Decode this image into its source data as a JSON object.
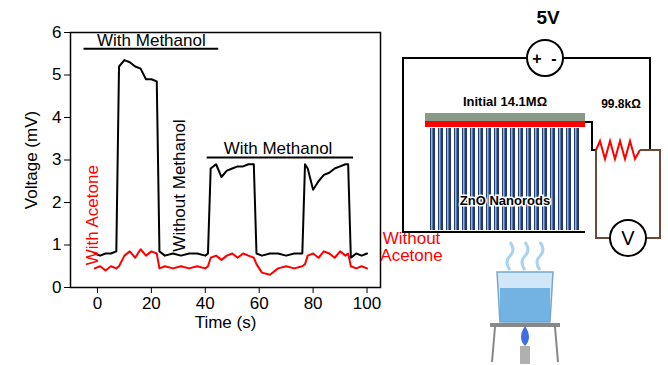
{
  "chart_data": {
    "type": "line",
    "x_label": "Time (s)",
    "y_label": "Voltage (mV)",
    "x": [
      -1,
      1,
      3,
      5,
      7,
      8,
      10,
      12,
      14,
      16,
      18,
      20,
      22,
      23,
      25,
      28,
      31,
      34,
      37,
      40,
      41,
      42,
      44,
      46,
      48,
      50,
      52,
      54,
      56,
      58,
      59,
      61,
      64,
      67,
      70,
      73,
      76,
      77,
      78,
      80,
      82,
      84,
      86,
      88,
      90,
      92,
      93,
      94,
      96,
      98,
      100
    ],
    "series": [
      {
        "name": "With Methanol",
        "color": "#000000",
        "values": [
          0.8,
          0.75,
          0.8,
          0.8,
          0.85,
          5.2,
          5.35,
          5.3,
          5.2,
          5.15,
          4.9,
          4.9,
          4.85,
          0.85,
          0.75,
          0.8,
          0.75,
          0.8,
          0.8,
          0.75,
          0.8,
          2.8,
          2.9,
          2.6,
          2.75,
          2.8,
          2.85,
          2.85,
          2.9,
          2.9,
          0.8,
          0.75,
          0.8,
          0.8,
          0.75,
          0.8,
          0.8,
          2.9,
          2.8,
          2.3,
          2.5,
          2.65,
          2.7,
          2.8,
          2.85,
          2.9,
          2.9,
          0.7,
          0.8,
          0.75,
          0.8
        ]
      },
      {
        "name": "With Acetone",
        "color": "#ff0000",
        "values": [
          0.45,
          0.5,
          0.4,
          0.5,
          0.45,
          0.5,
          0.75,
          0.85,
          0.7,
          0.9,
          0.75,
          0.85,
          0.8,
          0.45,
          0.5,
          0.45,
          0.5,
          0.45,
          0.5,
          0.45,
          0.5,
          0.7,
          0.75,
          0.65,
          0.75,
          0.8,
          0.7,
          0.8,
          0.75,
          0.7,
          0.55,
          0.35,
          0.3,
          0.45,
          0.5,
          0.45,
          0.5,
          0.55,
          0.75,
          0.8,
          0.7,
          0.85,
          0.8,
          0.7,
          0.85,
          0.75,
          0.8,
          0.5,
          0.45,
          0.5,
          0.45
        ]
      }
    ],
    "xlim": [
      -10,
      105
    ],
    "xticks": [
      0,
      20,
      40,
      60,
      80,
      100
    ],
    "ylim": [
      0,
      6
    ],
    "yticks": [
      0,
      1,
      2,
      3,
      4,
      5,
      6
    ],
    "grid": false,
    "annotations": [
      {
        "text": "With Methanol",
        "x": 20,
        "y": 5.82,
        "color": "#000000"
      },
      {
        "text": "With Methanol",
        "x": 67,
        "y": 3.27,
        "color": "#000000"
      },
      {
        "text": "Without Methanol",
        "x": 30.4,
        "y": 2.4,
        "color": "#000000"
      },
      {
        "text": "With Acetone",
        "x": -2,
        "y": 1.7,
        "color": "#ff0000"
      },
      {
        "text": "Without Acetone",
        "x": 116.5,
        "y": 0.95,
        "color": "#ff0000"
      }
    ],
    "brackets": [
      {
        "x": [
          -5,
          45
        ],
        "y": 5.62,
        "color": "#000000"
      },
      {
        "x": [
          40.7,
          95
        ],
        "y": 3.06,
        "color": "#000000"
      }
    ]
  },
  "diagram": {
    "source_label": "5V",
    "source_polarity": [
      "+",
      "-"
    ],
    "electrode_label": "Initial 14.1MΩ",
    "nanorod_label": "ZnO Nanorods",
    "resistor_label": "99.8kΩ",
    "meter_label": "V"
  }
}
